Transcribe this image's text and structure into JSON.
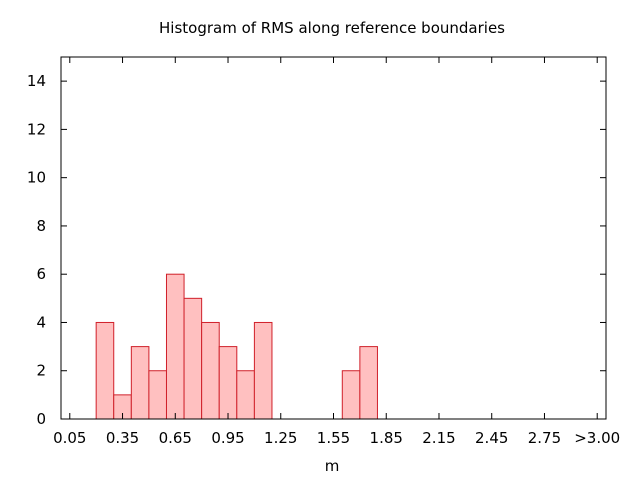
{
  "chart_data": {
    "type": "bar",
    "title": "Histogram of RMS along reference boundaries",
    "xlabel": "m",
    "ylabel": "",
    "x_tick_labels": [
      "0.05",
      "0.35",
      "0.65",
      "0.95",
      "1.25",
      "1.55",
      "1.85",
      "2.15",
      "2.45",
      "2.75",
      ">3.00"
    ],
    "xlim": [
      0.0,
      3.1
    ],
    "ylim": [
      0,
      15
    ],
    "y_ticks": [
      0,
      2,
      4,
      6,
      8,
      10,
      12,
      14
    ],
    "grid": false,
    "bin_width": 0.1,
    "bins": [
      {
        "x": 0.25,
        "value": 4
      },
      {
        "x": 0.35,
        "value": 1
      },
      {
        "x": 0.45,
        "value": 3
      },
      {
        "x": 0.55,
        "value": 2
      },
      {
        "x": 0.65,
        "value": 6
      },
      {
        "x": 0.75,
        "value": 5
      },
      {
        "x": 0.85,
        "value": 4
      },
      {
        "x": 0.95,
        "value": 3
      },
      {
        "x": 1.05,
        "value": 2
      },
      {
        "x": 1.15,
        "value": 4
      },
      {
        "x": 1.65,
        "value": 2
      },
      {
        "x": 1.75,
        "value": 3
      }
    ],
    "colors": {
      "bar_fill": "#ffc0c0",
      "bar_stroke": "#d0202a",
      "axis": "#000000"
    }
  }
}
